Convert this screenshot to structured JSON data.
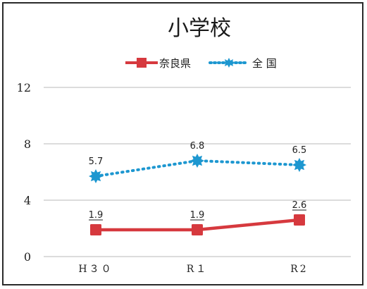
{
  "chart_data": {
    "type": "line",
    "title": "小学校",
    "categories": [
      "H30",
      "R1",
      "R2"
    ],
    "category_labels": [
      "H３０",
      "R１",
      "R2"
    ],
    "ylim": [
      0,
      12
    ],
    "yticks": [
      0,
      4,
      8,
      12
    ],
    "grid": true,
    "legend": "top",
    "series": [
      {
        "name": "奈良県",
        "values": [
          1.9,
          1.9,
          2.6
        ],
        "labels": [
          "1.9",
          "1.9",
          "2.6"
        ],
        "color": "#d6393e",
        "style": "solid",
        "marker": "square"
      },
      {
        "name": "全 国",
        "values": [
          5.7,
          6.8,
          6.5
        ],
        "labels": [
          "5.7",
          "6.8",
          "6.5"
        ],
        "color": "#1d97d0",
        "style": "dotted",
        "marker": "star"
      }
    ]
  },
  "legend": {
    "nara_label": "奈良県",
    "national_label": "全 国"
  }
}
